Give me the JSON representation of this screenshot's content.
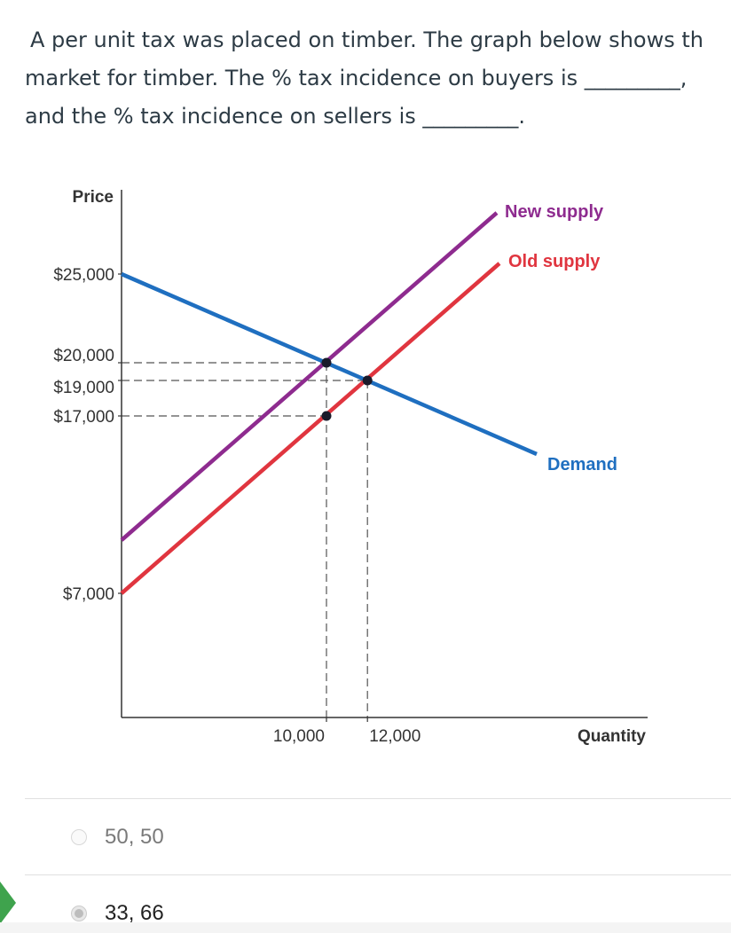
{
  "question": {
    "line1": "A per unit tax was placed on timber. The graph below shows th",
    "line2": "market for timber. The % tax incidence on buyers is _________,",
    "line3": "and the % tax incidence on sellers is _________."
  },
  "chart_data": {
    "type": "line",
    "xlabel": "Quantity",
    "ylabel": "Price",
    "y_ticks": [
      {
        "value": 25000,
        "label": "$25,000"
      },
      {
        "value": 20000,
        "label": "$20,000"
      },
      {
        "value": 19000,
        "label": "$19,000"
      },
      {
        "value": 17000,
        "label": "$17,000"
      },
      {
        "value": 7000,
        "label": "$7,000"
      }
    ],
    "x_ticks": [
      {
        "value": 10000,
        "label": "10,000"
      },
      {
        "value": 12000,
        "label": "12,000"
      }
    ],
    "grid": false,
    "series": [
      {
        "name": "Demand",
        "color": "#1f6fc0",
        "points": [
          [
            0,
            25000
          ],
          [
            20260,
            14850
          ]
        ]
      },
      {
        "name": "Old supply",
        "color": "#e0353f",
        "points": [
          [
            0,
            7000
          ],
          [
            18440,
            25600
          ]
        ]
      },
      {
        "name": "New supply",
        "color": "#8e2b8f",
        "points": [
          [
            0,
            10000
          ],
          [
            18310,
            28450
          ]
        ]
      }
    ],
    "points": [
      [
        10000,
        20000
      ],
      [
        12000,
        19000
      ],
      [
        10000,
        17000
      ]
    ],
    "guides": {
      "horizontal": [
        [
          20000,
          10000
        ],
        [
          19000,
          12000
        ],
        [
          17000,
          10000
        ]
      ],
      "vertical": [
        10000,
        12000
      ]
    }
  },
  "options": [
    {
      "label": "50, 50",
      "selected": false
    },
    {
      "label": "33, 66",
      "selected": true
    }
  ]
}
